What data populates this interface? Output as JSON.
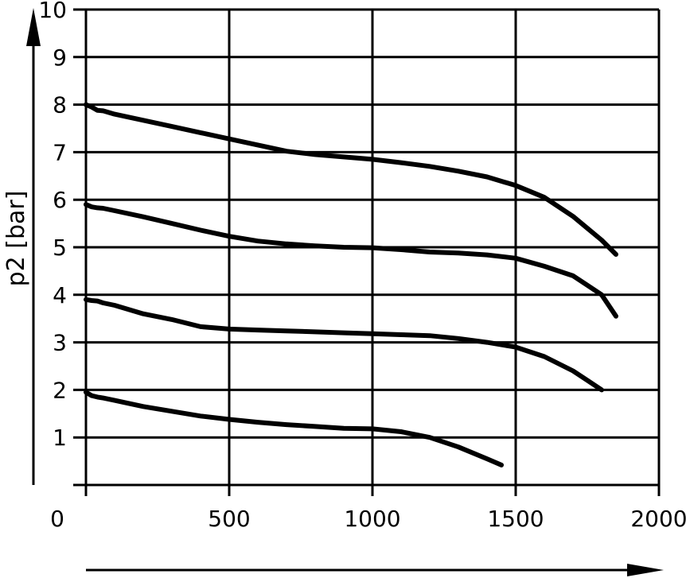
{
  "chart_data": {
    "type": "line",
    "title": "",
    "xlabel": "",
    "ylabel": "p2 [bar]",
    "xlim": [
      0,
      2000
    ],
    "ylim": [
      0,
      10
    ],
    "grid": true,
    "x_ticks": [
      "0",
      "500",
      "1000",
      "1500",
      "2000"
    ],
    "y_ticks": [
      "1",
      "2",
      "3",
      "4",
      "5",
      "6",
      "7",
      "8",
      "9",
      "10"
    ],
    "series": [
      {
        "x": [
          0,
          20,
          40,
          60,
          100,
          200,
          300,
          400,
          500,
          600,
          700,
          800,
          900,
          1000,
          1100,
          1200,
          1300,
          1400,
          1500,
          1600,
          1700,
          1750,
          1800,
          1850
        ],
        "y": [
          8.0,
          7.95,
          7.88,
          7.87,
          7.8,
          7.67,
          7.54,
          7.41,
          7.28,
          7.15,
          7.02,
          6.95,
          6.9,
          6.85,
          6.78,
          6.7,
          6.6,
          6.48,
          6.3,
          6.05,
          5.65,
          5.4,
          5.15,
          4.85
        ]
      },
      {
        "x": [
          0,
          20,
          40,
          60,
          100,
          200,
          300,
          400,
          500,
          600,
          700,
          800,
          900,
          1000,
          1100,
          1200,
          1300,
          1400,
          1500,
          1600,
          1700,
          1750,
          1800,
          1850
        ],
        "y": [
          5.9,
          5.85,
          5.83,
          5.82,
          5.77,
          5.64,
          5.5,
          5.36,
          5.23,
          5.13,
          5.07,
          5.03,
          5.0,
          4.99,
          4.95,
          4.9,
          4.88,
          4.84,
          4.77,
          4.6,
          4.4,
          4.2,
          4.0,
          3.55
        ]
      },
      {
        "x": [
          0,
          20,
          40,
          60,
          100,
          200,
          300,
          400,
          500,
          600,
          700,
          800,
          900,
          1000,
          1100,
          1200,
          1300,
          1400,
          1500,
          1600,
          1700,
          1750,
          1800
        ],
        "y": [
          3.9,
          3.88,
          3.87,
          3.83,
          3.78,
          3.6,
          3.48,
          3.33,
          3.28,
          3.26,
          3.24,
          3.22,
          3.2,
          3.18,
          3.16,
          3.14,
          3.08,
          3.0,
          2.9,
          2.7,
          2.4,
          2.2,
          2.0
        ]
      },
      {
        "x": [
          0,
          20,
          40,
          60,
          100,
          200,
          300,
          400,
          500,
          600,
          700,
          800,
          900,
          1000,
          1100,
          1200,
          1300,
          1400,
          1450
        ],
        "y": [
          1.95,
          1.88,
          1.85,
          1.83,
          1.78,
          1.65,
          1.55,
          1.45,
          1.38,
          1.32,
          1.27,
          1.23,
          1.19,
          1.18,
          1.12,
          1.0,
          0.8,
          0.55,
          0.42
        ]
      }
    ]
  }
}
